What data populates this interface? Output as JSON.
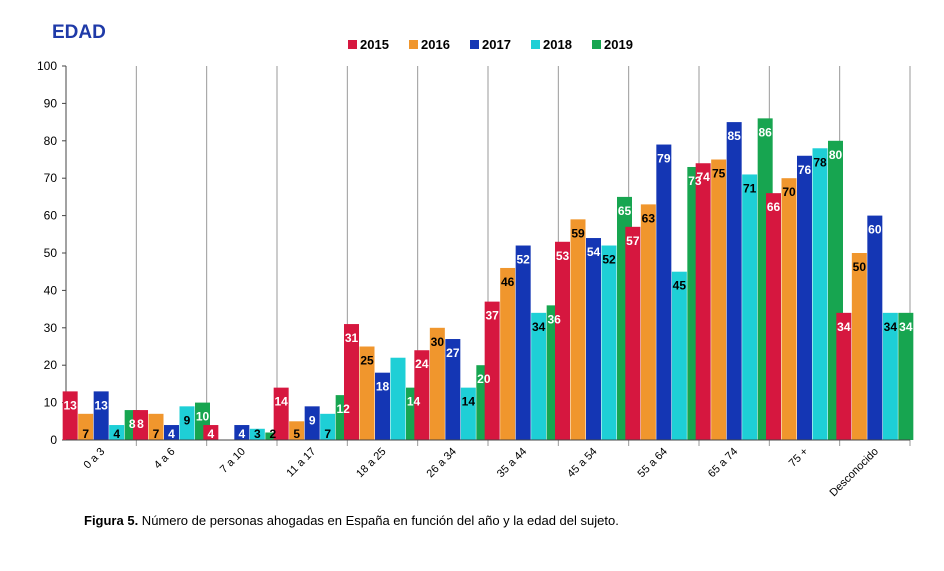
{
  "chart_data": {
    "type": "bar",
    "title": "EDAD",
    "xlabel": "",
    "ylabel": "",
    "ylim": [
      0,
      100
    ],
    "yticks": [
      0,
      10,
      20,
      30,
      40,
      50,
      60,
      70,
      80,
      90,
      100
    ],
    "grid": "vertical separators between categories",
    "legend_position": "top-center",
    "categories": [
      "0 a 3",
      "4 a 6",
      "7 a 10",
      "11 a 17",
      "18 a 25",
      "26 a 34",
      "35 a 44",
      "45 a 54",
      "55 a 64",
      "65 a 74",
      "75 +",
      "Desconocido"
    ],
    "series": [
      {
        "name": "2015",
        "color": "#d6173f",
        "label_color": "#ffffff",
        "values": [
          13,
          8,
          4,
          14,
          31,
          24,
          37,
          53,
          57,
          74,
          66,
          34
        ]
      },
      {
        "name": "2016",
        "color": "#f0962d",
        "label_color": "#000000",
        "values": [
          7,
          7,
          0,
          5,
          25,
          30,
          46,
          59,
          63,
          75,
          70,
          50
        ]
      },
      {
        "name": "2017",
        "color": "#1436b4",
        "label_color": "#ffffff",
        "values": [
          13,
          4,
          4,
          9,
          18,
          27,
          52,
          54,
          79,
          85,
          76,
          60
        ]
      },
      {
        "name": "2018",
        "color": "#1ecfd6",
        "label_color": "#000000",
        "values": [
          4,
          9,
          3,
          7,
          22,
          14,
          34,
          52,
          45,
          71,
          78,
          34
        ]
      },
      {
        "name": "2019",
        "color": "#17a550",
        "label_color": "#ffffff",
        "values": [
          8,
          10,
          2,
          12,
          14,
          20,
          36,
          65,
          73,
          86,
          80,
          34
        ]
      }
    ],
    "data_labels": [
      [
        "13",
        "7",
        "13",
        "4",
        "8"
      ],
      [
        "8",
        "7",
        "4",
        "9",
        "10"
      ],
      [
        "4",
        "",
        "4",
        "3",
        "2"
      ],
      [
        "14",
        "5",
        "9",
        "7",
        "12"
      ],
      [
        "31",
        "25",
        "18",
        "",
        "14"
      ],
      [
        "24",
        "30",
        "27",
        "14",
        "20"
      ],
      [
        "37",
        "46",
        "52",
        "34",
        "36"
      ],
      [
        "53",
        "59",
        "54",
        "52",
        "65"
      ],
      [
        "57",
        "63",
        "79",
        "45",
        "73"
      ],
      [
        "74",
        "75",
        "85",
        "71",
        "86"
      ],
      [
        "66",
        "70",
        "76",
        "78",
        "80"
      ],
      [
        "34",
        "50",
        "60",
        "34",
        "34"
      ]
    ]
  },
  "caption": {
    "label": "Figura 5.",
    "text": " Número de personas ahogadas en España en función del año y la edad del sujeto."
  }
}
